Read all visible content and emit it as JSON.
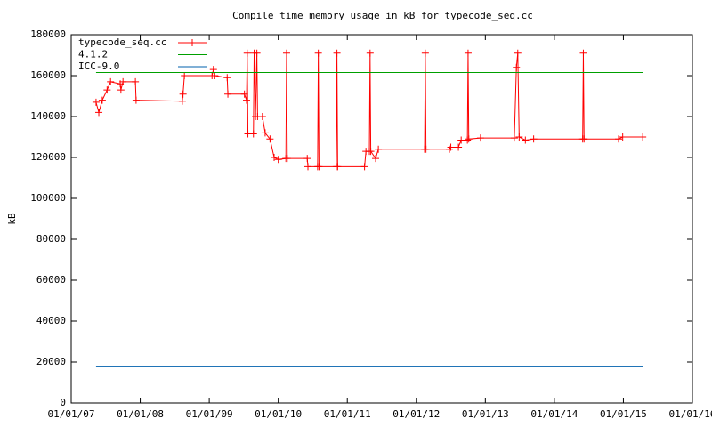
{
  "chart_data": {
    "type": "line",
    "title": "Compile time memory usage in kB for typecode_seq.cc",
    "y_label": "kB",
    "xlim": [
      2007,
      2016
    ],
    "xticks": [
      {
        "value": 2007,
        "label": "01/01/07"
      },
      {
        "value": 2008,
        "label": "01/01/08"
      },
      {
        "value": 2009,
        "label": "01/01/09"
      },
      {
        "value": 2010,
        "label": "01/01/10"
      },
      {
        "value": 2011,
        "label": "01/01/11"
      },
      {
        "value": 2012,
        "label": "01/01/12"
      },
      {
        "value": 2013,
        "label": "01/01/13"
      },
      {
        "value": 2014,
        "label": "01/01/14"
      },
      {
        "value": 2015,
        "label": "01/01/15"
      },
      {
        "value": 2016,
        "label": "01/01/16"
      }
    ],
    "ylim": [
      0,
      180000
    ],
    "yticks": [
      0,
      20000,
      40000,
      60000,
      80000,
      100000,
      120000,
      140000,
      160000,
      180000
    ],
    "grid": false,
    "legend": "top-left",
    "series": [
      {
        "name": "typecode_seq.cc",
        "color": "#ff0000",
        "marker": "plus",
        "x": [
          2007.36,
          2007.4,
          2007.45,
          2007.52,
          2007.57,
          2007.71,
          2007.72,
          2007.75,
          2007.93,
          2007.94,
          2008.61,
          2008.62,
          2008.64,
          2009.04,
          2009.06,
          2009.08,
          2009.26,
          2009.27,
          2009.51,
          2009.54,
          2009.55,
          2009.56,
          2009.64,
          2009.65,
          2009.67,
          2009.69,
          2009.7,
          2009.77,
          2009.81,
          2009.88,
          2009.94,
          2010.0,
          2010.11,
          2010.12,
          2010.13,
          2010.42,
          2010.43,
          2010.57,
          2010.58,
          2010.59,
          2010.84,
          2010.85,
          2010.86,
          2011.25,
          2011.27,
          2011.32,
          2011.33,
          2011.34,
          2011.41,
          2011.45,
          2012.12,
          2012.13,
          2012.14,
          2012.48,
          2012.5,
          2012.61,
          2012.65,
          2012.74,
          2012.75,
          2012.76,
          2012.93,
          2013.42,
          2013.45,
          2013.47,
          2013.49,
          2013.58,
          2013.7,
          2014.41,
          2014.42,
          2014.43,
          2014.93,
          2014.99,
          2015.28
        ],
        "values": [
          147000,
          142000,
          148000,
          153000,
          157000,
          156000,
          153000,
          157000,
          157000,
          148000,
          147500,
          151000,
          160000,
          160000,
          163000,
          160000,
          159000,
          151000,
          151000,
          148000,
          171000,
          131500,
          131500,
          171000,
          140000,
          171000,
          140000,
          140000,
          132000,
          129000,
          120000,
          119000,
          119500,
          171000,
          119500,
          119500,
          115500,
          115500,
          171000,
          115500,
          115500,
          171000,
          115500,
          115500,
          123000,
          123000,
          171000,
          123000,
          119500,
          124000,
          124000,
          171000,
          124000,
          124000,
          125000,
          125000,
          128500,
          128500,
          171000,
          129000,
          129500,
          129500,
          164000,
          171000,
          130000,
          128500,
          129000,
          129000,
          171000,
          129000,
          129000,
          130000,
          130000
        ]
      },
      {
        "name": "4.1.2",
        "color": "#00a000",
        "x": [
          2007.36,
          2015.28
        ],
        "values": [
          161500,
          161500
        ]
      },
      {
        "name": "ICC-9.0",
        "color": "#0060ad",
        "x": [
          2007.36,
          2015.28
        ],
        "values": [
          18000,
          18000
        ]
      }
    ]
  }
}
